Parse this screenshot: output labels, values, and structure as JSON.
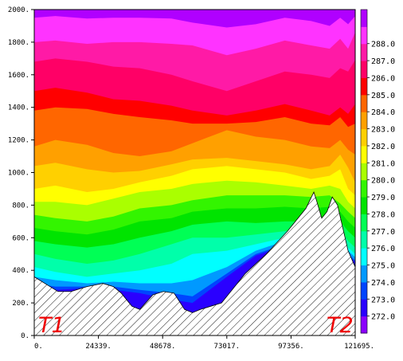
{
  "chart_data": {
    "type": "heatmap",
    "subtype": "filled-contour cross-section with hatched terrain",
    "title": "",
    "xlabel": "",
    "ylabel": "",
    "xlim": [
      0,
      121695
    ],
    "ylim": [
      0,
      2000
    ],
    "x_ticks": [
      "0.",
      "24339.",
      "48678.",
      "73017.",
      "97356.",
      "121695."
    ],
    "y_ticks": [
      "0.",
      "200.",
      "400.",
      "600.",
      "800.",
      "1000.",
      "1200.",
      "1400.",
      "1600.",
      "1800.",
      "2000."
    ],
    "colorbar": {
      "placement": "right",
      "levels": [
        272.0,
        273.0,
        274.0,
        275.0,
        276.0,
        277.0,
        278.0,
        279.0,
        280.0,
        281.0,
        282.0,
        283.0,
        284.0,
        285.0,
        286.0,
        287.0,
        288.0
      ],
      "labels": [
        "272.0",
        "273.0",
        "274.0",
        "275.0",
        "276.0",
        "277.0",
        "278.0",
        "279.0",
        "280.0",
        "281.0",
        "282.0",
        "283.0",
        "284.0",
        "285.0",
        "286.0",
        "287.0",
        "288.0"
      ],
      "colors": [
        "#8b00ff",
        "#2a00ff",
        "#0044ff",
        "#0099ff",
        "#00ffff",
        "#00ffaa",
        "#00ff55",
        "#00e400",
        "#33f500",
        "#aaff00",
        "#ffff00",
        "#ffd000",
        "#ffa000",
        "#ff6600",
        "#ff0000",
        "#ff0066",
        "#ff1aa6",
        "#ff33ff",
        "#b000ff"
      ]
    },
    "band_boundaries": [
      {
        "level": 288.0,
        "x": [
          0,
          8000,
          20000,
          30000,
          40000,
          52000,
          60000,
          73017,
          84000,
          95000,
          105000,
          112000,
          116000,
          119000,
          121695
        ],
        "y": [
          1950,
          1960,
          1945,
          1950,
          1950,
          1945,
          1920,
          1890,
          1910,
          1950,
          1930,
          1900,
          1950,
          1910,
          1960
        ]
      },
      {
        "level": 287.0,
        "x": [
          0,
          8000,
          20000,
          30000,
          40000,
          52000,
          60000,
          73017,
          84000,
          95000,
          105000,
          112000,
          116000,
          119000,
          121695
        ],
        "y": [
          1800,
          1810,
          1790,
          1800,
          1800,
          1790,
          1780,
          1720,
          1760,
          1810,
          1780,
          1760,
          1820,
          1760,
          1860
        ]
      },
      {
        "level": 286.0,
        "x": [
          0,
          8000,
          20000,
          30000,
          40000,
          52000,
          60000,
          73017,
          84000,
          95000,
          105000,
          112000,
          116000,
          119000,
          121695
        ],
        "y": [
          1680,
          1700,
          1680,
          1650,
          1640,
          1600,
          1560,
          1500,
          1560,
          1620,
          1600,
          1580,
          1640,
          1620,
          1690
        ]
      },
      {
        "level": 285.0,
        "x": [
          0,
          8000,
          20000,
          30000,
          40000,
          52000,
          60000,
          73017,
          84000,
          95000,
          105000,
          112000,
          116000,
          119000,
          121695
        ],
        "y": [
          1500,
          1520,
          1490,
          1450,
          1440,
          1410,
          1380,
          1350,
          1380,
          1420,
          1380,
          1350,
          1400,
          1360,
          1420
        ]
      },
      {
        "level": 284.0,
        "x": [
          0,
          8000,
          20000,
          30000,
          40000,
          52000,
          60000,
          73017,
          84000,
          95000,
          105000,
          112000,
          116000,
          119000,
          121695
        ],
        "y": [
          1380,
          1400,
          1390,
          1360,
          1340,
          1320,
          1300,
          1300,
          1310,
          1340,
          1300,
          1290,
          1340,
          1280,
          1300
        ]
      },
      {
        "level": 283.0,
        "x": [
          0,
          8000,
          20000,
          30000,
          40000,
          52000,
          60000,
          73017,
          84000,
          95000,
          105000,
          112000,
          116000,
          119000,
          121695
        ],
        "y": [
          1160,
          1200,
          1170,
          1120,
          1100,
          1130,
          1180,
          1260,
          1220,
          1200,
          1160,
          1150,
          1200,
          1140,
          1110
        ]
      },
      {
        "level": 282.0,
        "x": [
          0,
          8000,
          20000,
          30000,
          40000,
          52000,
          60000,
          73017,
          84000,
          95000,
          105000,
          112000,
          116000,
          119000,
          121695
        ],
        "y": [
          1040,
          1060,
          1020,
          1000,
          1010,
          1050,
          1080,
          1090,
          1070,
          1050,
          1020,
          1040,
          1110,
          1030,
          940
        ]
      },
      {
        "level": 281.0,
        "x": [
          0,
          8000,
          20000,
          30000,
          40000,
          52000,
          60000,
          73017,
          84000,
          95000,
          105000,
          112000,
          116000,
          119000,
          121695
        ],
        "y": [
          900,
          920,
          880,
          900,
          940,
          980,
          1020,
          1040,
          1020,
          1000,
          960,
          980,
          1020,
          900,
          860
        ]
      },
      {
        "level": 280.0,
        "x": [
          0,
          8000,
          20000,
          30000,
          40000,
          52000,
          60000,
          73017,
          84000,
          95000,
          105000,
          112000,
          116000,
          119000,
          121695
        ],
        "y": [
          820,
          820,
          800,
          840,
          880,
          900,
          930,
          950,
          940,
          920,
          900,
          920,
          900,
          820,
          780
        ]
      },
      {
        "level": 279.0,
        "x": [
          0,
          8000,
          20000,
          30000,
          40000,
          52000,
          60000,
          73017,
          84000,
          95000,
          105000,
          112000,
          116000,
          119000,
          121695
        ],
        "y": [
          740,
          720,
          700,
          730,
          780,
          800,
          830,
          860,
          860,
          860,
          850,
          860,
          810,
          760,
          720
        ]
      },
      {
        "level": 278.0,
        "x": [
          0,
          8000,
          20000,
          30000,
          40000,
          52000,
          60000,
          73017,
          84000,
          95000,
          105000,
          112000,
          116000,
          119000,
          121695
        ],
        "y": [
          660,
          640,
          620,
          650,
          700,
          720,
          760,
          780,
          780,
          790,
          780,
          790,
          760,
          700,
          660
        ]
      },
      {
        "level": 277.0,
        "x": [
          0,
          8000,
          20000,
          30000,
          40000,
          52000,
          60000,
          73017,
          84000,
          95000,
          105000,
          112000,
          116000,
          119000,
          121695
        ],
        "y": [
          580,
          560,
          540,
          560,
          600,
          640,
          680,
          700,
          690,
          700,
          700,
          720,
          700,
          640,
          600
        ]
      },
      {
        "level": 276.0,
        "x": [
          0,
          8000,
          20000,
          30000,
          40000,
          52000,
          60000,
          73017,
          84000,
          95000,
          105000,
          112000,
          116000,
          119000,
          121695
        ],
        "y": [
          500,
          470,
          440,
          460,
          500,
          560,
          600,
          600,
          620,
          640,
          650,
          660,
          650,
          580,
          540
        ]
      },
      {
        "level": 275.0,
        "x": [
          0,
          8000,
          20000,
          30000,
          40000,
          52000,
          60000,
          73017,
          84000,
          95000,
          105000,
          112000,
          116000,
          119000,
          121695
        ],
        "y": [
          420,
          390,
          360,
          380,
          400,
          440,
          500,
          520,
          560,
          600,
          620,
          630,
          620,
          540,
          500
        ]
      },
      {
        "level": 274.0,
        "x": [
          0,
          8000,
          20000,
          30000,
          40000,
          52000,
          60000,
          73017,
          84000,
          95000,
          105000,
          112000,
          116000,
          119000,
          121695
        ],
        "y": [
          360,
          340,
          320,
          330,
          320,
          320,
          340,
          420,
          520,
          580,
          600,
          610,
          600,
          520,
          480
        ]
      },
      {
        "level": 273.0,
        "x": [
          0,
          8000,
          20000,
          30000,
          40000,
          52000,
          60000,
          73017,
          84000,
          95000,
          105000,
          112000,
          116000,
          119000,
          121695
        ],
        "y": [
          320,
          300,
          300,
          300,
          280,
          260,
          240,
          380,
          500,
          560,
          580,
          590,
          580,
          500,
          460
        ]
      },
      {
        "level": 272.0,
        "x": [
          0,
          8000,
          20000,
          30000,
          40000,
          52000,
          60000,
          73017,
          84000,
          95000,
          105000,
          112000,
          116000,
          119000,
          121695
        ],
        "y": [
          300,
          280,
          290,
          280,
          260,
          220,
          200,
          360,
          490,
          550,
          570,
          580,
          570,
          490,
          450
        ]
      }
    ],
    "terrain": {
      "x": [
        0,
        4000,
        9000,
        14000,
        20000,
        26000,
        30000,
        33000,
        37000,
        40000,
        45000,
        49000,
        53000,
        57000,
        60000,
        63000,
        67000,
        71000,
        75000,
        80000,
        88000,
        96000,
        103000,
        106000,
        107000,
        109000,
        111000,
        113000,
        115000,
        117000,
        119000,
        121695
      ],
      "y": [
        360,
        320,
        270,
        270,
        300,
        320,
        300,
        260,
        180,
        160,
        250,
        270,
        260,
        160,
        140,
        160,
        180,
        200,
        280,
        380,
        500,
        640,
        780,
        880,
        830,
        720,
        760,
        850,
        800,
        660,
        520,
        420
      ]
    },
    "annotations": [
      {
        "text": "T1",
        "placement": "bottom-left",
        "color": "#ee0000"
      },
      {
        "text": "T2",
        "placement": "bottom-right",
        "color": "#ee0000"
      }
    ],
    "grid": false
  }
}
